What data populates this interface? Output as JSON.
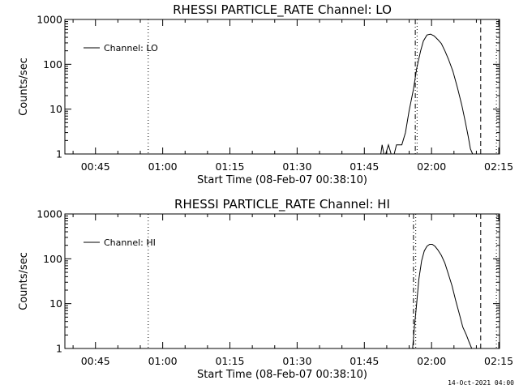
{
  "chart_data": [
    {
      "type": "line",
      "title": "RHESSI PARTICLE_RATE Channel: LO",
      "xlabel": "Start Time (08-Feb-07 00:38:10)",
      "ylabel": "Counts/sec",
      "yscale": "log",
      "xlim_minutes": [
        0,
        97
      ],
      "ylim": [
        1,
        1000
      ],
      "x_ticks": [
        {
          "minute": 6.83,
          "label": "00:45"
        },
        {
          "minute": 21.83,
          "label": "01:00"
        },
        {
          "minute": 36.83,
          "label": "01:15"
        },
        {
          "minute": 51.83,
          "label": "01:30"
        },
        {
          "minute": 66.83,
          "label": "01:45"
        },
        {
          "minute": 81.83,
          "label": "02:00"
        },
        {
          "minute": 96.83,
          "label": "02:15"
        }
      ],
      "y_ticks": [
        {
          "value": 1,
          "label": "1"
        },
        {
          "value": 10,
          "label": "10"
        },
        {
          "value": 100,
          "label": "100"
        },
        {
          "value": 1000,
          "label": "1000"
        }
      ],
      "legend": "Channel: LO",
      "series": [
        {
          "name": "Channel: LO",
          "x": [
            70.5,
            70.8,
            71.2,
            71.6,
            72.2,
            72.8,
            73.5,
            74.0,
            74.5,
            75.2,
            76.0,
            76.8,
            77.8,
            78.5,
            79.4,
            80.0,
            80.8,
            81.6,
            82.4,
            83.2,
            84.0,
            84.8,
            85.6,
            86.6,
            87.6,
            88.6,
            89.4,
            90.0,
            90.5,
            91.0
          ],
          "y": [
            1,
            1.6,
            1,
            1,
            1.6,
            1,
            1,
            1.6,
            1.6,
            1.6,
            3,
            9,
            28,
            80,
            200,
            330,
            450,
            470,
            430,
            360,
            290,
            200,
            130,
            70,
            30,
            12,
            5,
            2.5,
            1.3,
            1
          ]
        }
      ],
      "vlines": [
        {
          "minute": 18.6,
          "style": "dotted"
        },
        {
          "minute": 78.2,
          "style": "dashdot"
        },
        {
          "minute": 78.6,
          "style": "dotted"
        },
        {
          "minute": 92.8,
          "style": "dashed"
        },
        {
          "minute": 96.3,
          "style": "dotted"
        }
      ]
    },
    {
      "type": "line",
      "title": "RHESSI PARTICLE_RATE Channel: HI",
      "xlabel": "Start Time (08-Feb-07 00:38:10)",
      "ylabel": "Counts/sec",
      "yscale": "log",
      "xlim_minutes": [
        0,
        97
      ],
      "ylim": [
        1,
        1000
      ],
      "x_ticks": [
        {
          "minute": 6.83,
          "label": "00:45"
        },
        {
          "minute": 21.83,
          "label": "01:00"
        },
        {
          "minute": 36.83,
          "label": "01:15"
        },
        {
          "minute": 51.83,
          "label": "01:30"
        },
        {
          "minute": 66.83,
          "label": "01:45"
        },
        {
          "minute": 81.83,
          "label": "02:00"
        },
        {
          "minute": 96.83,
          "label": "02:15"
        }
      ],
      "y_ticks": [
        {
          "value": 1,
          "label": "1"
        },
        {
          "value": 10,
          "label": "10"
        },
        {
          "value": 100,
          "label": "100"
        },
        {
          "value": 1000,
          "label": "1000"
        }
      ],
      "legend": "Channel: HI",
      "series": [
        {
          "name": "Channel: HI",
          "x": [
            77.6,
            78.0,
            78.5,
            79.0,
            79.6,
            80.2,
            80.8,
            81.4,
            82.0,
            82.6,
            83.2,
            84.0,
            84.8,
            85.6,
            86.4,
            87.2,
            88.0,
            88.8,
            89.6,
            90.2,
            90.8
          ],
          "y": [
            1,
            3,
            10,
            35,
            90,
            150,
            190,
            210,
            210,
            190,
            160,
            120,
            80,
            45,
            25,
            12,
            6,
            3,
            2,
            1.4,
            1
          ]
        }
      ],
      "vlines": [
        {
          "minute": 18.6,
          "style": "dotted"
        },
        {
          "minute": 77.8,
          "style": "dashdot"
        },
        {
          "minute": 78.3,
          "style": "dotted"
        },
        {
          "minute": 92.8,
          "style": "dashed"
        },
        {
          "minute": 96.3,
          "style": "dotted"
        }
      ]
    }
  ],
  "footer": {
    "timestamp": "14-Oct-2021 04:00"
  }
}
